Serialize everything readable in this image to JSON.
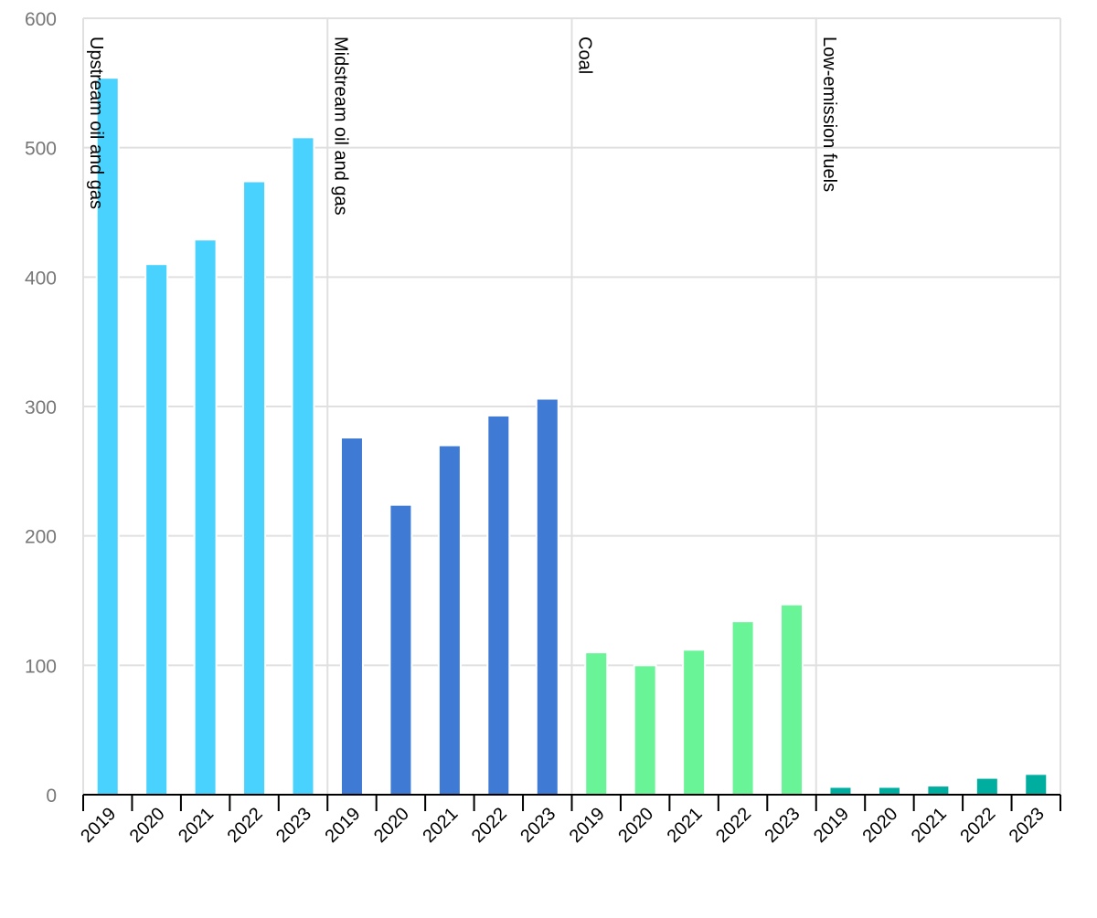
{
  "chart_data": {
    "type": "bar",
    "title": "",
    "xlabel": "",
    "ylabel": "",
    "ylim": [
      0,
      600
    ],
    "yticks": [
      "0",
      "100",
      "200",
      "300",
      "400",
      "500",
      "600"
    ],
    "grid": true,
    "legend": "none",
    "categories": [
      "2019",
      "2020",
      "2021",
      "2022",
      "2023"
    ],
    "groups": [
      {
        "name": "Upstream oil and gas",
        "color": "#4ad2ff",
        "values": [
          554,
          410,
          429,
          474,
          508
        ]
      },
      {
        "name": "Midstream oil and gas",
        "color": "#3f7bd4",
        "values": [
          276,
          224,
          270,
          293,
          306
        ]
      },
      {
        "name": "Coal",
        "color": "#69f597",
        "values": [
          110,
          100,
          112,
          134,
          147
        ]
      },
      {
        "name": "Low-emission fuels",
        "color": "#00aea0",
        "values": [
          6,
          6,
          7,
          13,
          16
        ]
      }
    ]
  }
}
